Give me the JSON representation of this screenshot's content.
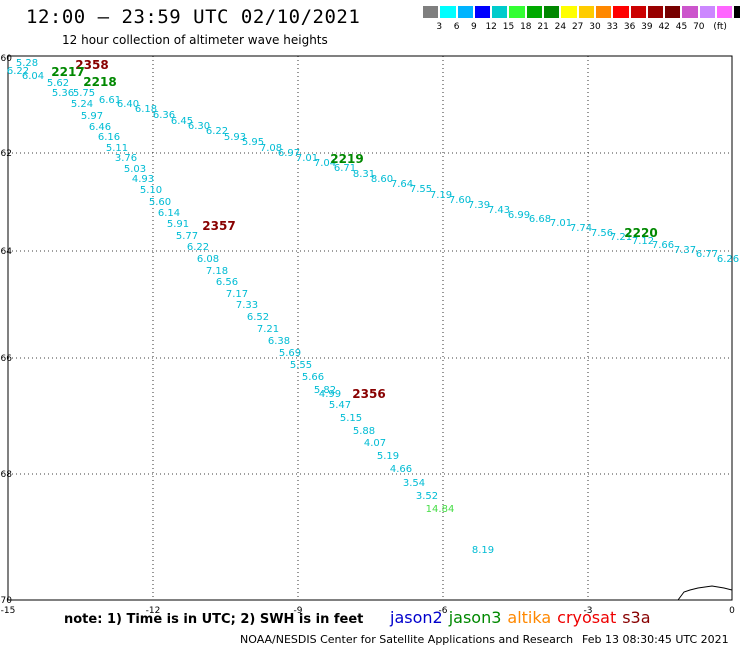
{
  "header": {
    "title": "12:00 – 23:59 UTC 02/10/2021",
    "subtitle": "12 hour collection of altimeter wave heights"
  },
  "colorbar": {
    "colors": [
      "#7f7f7f",
      "#00ffff",
      "#00b4ff",
      "#0000ff",
      "#00cccc",
      "#33ff33",
      "#00aa00",
      "#008800",
      "#ffff00",
      "#ffcc00",
      "#ff8800",
      "#ff0000",
      "#cc0000",
      "#990000",
      "#770000",
      "#cc55cc",
      "#cc88ff",
      "#ff66ff",
      "#000000"
    ],
    "labels": [
      "3",
      "6",
      "9",
      "12",
      "15",
      "18",
      "21",
      "24",
      "27",
      "30",
      "33",
      "36",
      "39",
      "42",
      "45",
      "70",
      "(ft)"
    ]
  },
  "axes": {
    "x_ticks": [
      "-15",
      "-12",
      "-9",
      "-6",
      "-3",
      "0"
    ],
    "y_ticks": [
      "-60",
      "-62",
      "-64",
      "-66",
      "-68",
      "-70"
    ]
  },
  "pass_labels": [
    {
      "id": "2358",
      "color": "#880000"
    },
    {
      "id": "2217",
      "color": "#008800"
    },
    {
      "id": "2218",
      "color": "#008800"
    },
    {
      "id": "2219",
      "color": "#008800"
    },
    {
      "id": "2357",
      "color": "#880000"
    },
    {
      "id": "2220",
      "color": "#008800"
    },
    {
      "id": "2356",
      "color": "#880000"
    }
  ],
  "track_a": {
    "values": [
      "5.28",
      "6.22",
      "6.04",
      "5.62",
      "5.75",
      "5.36",
      "5.24",
      "5.97",
      "6.46",
      "6.16",
      "5.11",
      "3.76",
      "5.03",
      "4.93",
      "5.10",
      "5.60",
      "6.14",
      "5.91",
      "5.77",
      "6.22",
      "6.08",
      "7.18",
      "6.56",
      "7.17",
      "7.33",
      "6.52",
      "7.21",
      "6.38",
      "5.69",
      "5.55",
      "5.66",
      "5.82",
      "4.99",
      "5.47",
      "5.15",
      "5.88",
      "4.07",
      "5.19",
      "4.66",
      "3.54",
      "3.52",
      "14.84",
      "8.19"
    ]
  },
  "track_b": {
    "values": [
      "6.61",
      "6.40",
      "6.18",
      "6.36",
      "6.45",
      "6.30",
      "6.22",
      "5.93",
      "5.95",
      "7.08",
      "6.97",
      "7.01",
      "7.04",
      "6.71",
      "8.31",
      "8.60",
      "7.64",
      "7.55",
      "7.19",
      "7.60",
      "7.39",
      "7.43",
      "6.99",
      "6.68",
      "7.01",
      "7.74",
      "7.56",
      "7.21",
      "7.12",
      "7.66",
      "7.37",
      "6.77",
      "6.26"
    ]
  },
  "missions": [
    {
      "name": "jason2",
      "color": "#0000cc"
    },
    {
      "name": "jason3",
      "color": "#008800"
    },
    {
      "name": "altika",
      "color": "#ff8800"
    },
    {
      "name": "cryosat",
      "color": "#ee0000"
    },
    {
      "name": "s3a",
      "color": "#880000"
    }
  ],
  "footer": {
    "note": "note: 1) Time is in UTC; 2) SWH is in feet",
    "credit": "NOAA/NESDIS Center for Satellite Applications and Research",
    "timestamp": "Feb 13 08:30:45 UTC 2021"
  },
  "colors": {
    "track": "#00bcd4",
    "highlight": "#44dd44"
  }
}
